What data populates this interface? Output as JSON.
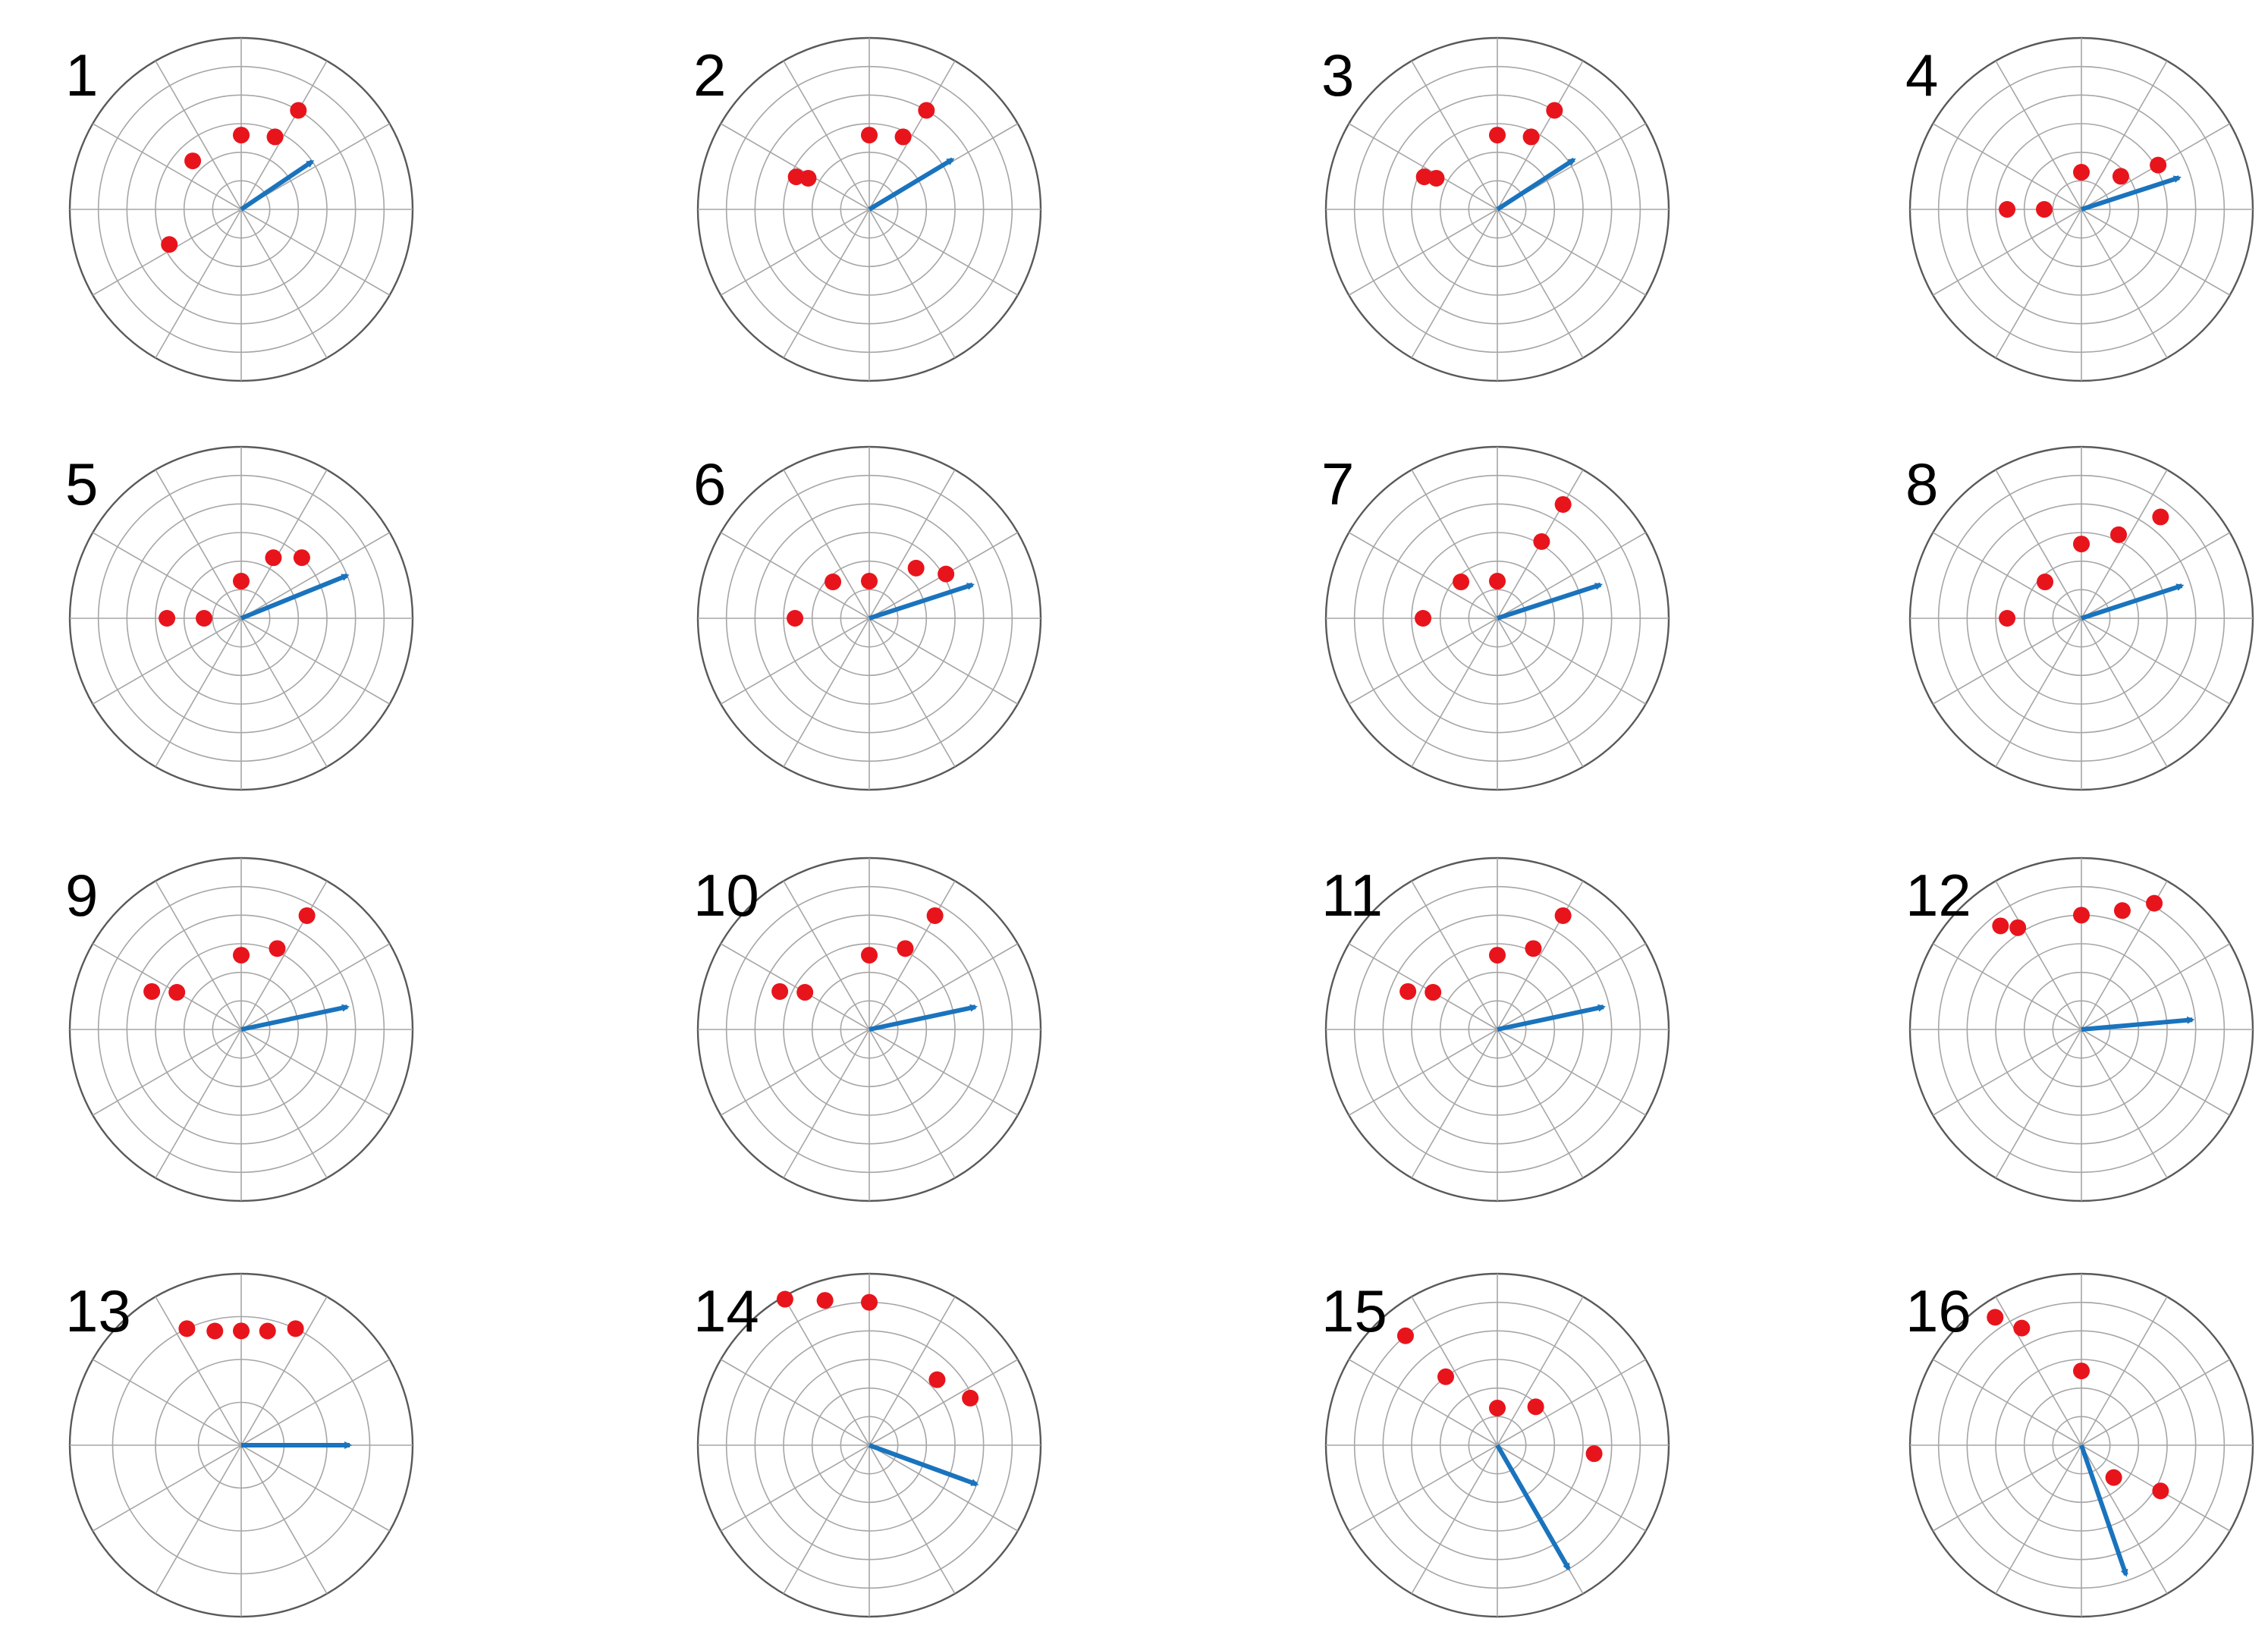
{
  "chart_data": {
    "type": "polar-scatter",
    "layout": {
      "columns": 4,
      "rows": 4
    },
    "grid": true,
    "theta_direction": "counterclockwise",
    "theta_zero": "east",
    "angular_gridline_spacing_deg": 30,
    "colors": {
      "point": "#e8141c",
      "arrow": "#1a73bd",
      "grid": "#a6a6a6",
      "outer_ring": "#595959"
    },
    "panels": [
      {
        "label": "1",
        "rings": 6,
        "points": [
          {
            "r": 4.0,
            "theta": 60
          },
          {
            "r": 2.8,
            "theta": 65
          },
          {
            "r": 2.6,
            "theta": 90
          },
          {
            "r": 2.4,
            "theta": 135
          },
          {
            "r": 2.8,
            "theta": 206
          }
        ],
        "arrow": {
          "r": 3.0,
          "theta": 34
        }
      },
      {
        "label": "2",
        "rings": 6,
        "points": [
          {
            "r": 4.0,
            "theta": 60
          },
          {
            "r": 2.8,
            "theta": 65
          },
          {
            "r": 2.6,
            "theta": 90
          },
          {
            "r": 2.8,
            "theta": 156
          },
          {
            "r": 2.4,
            "theta": 153
          }
        ],
        "arrow": {
          "r": 3.4,
          "theta": 31
        }
      },
      {
        "label": "3",
        "rings": 6,
        "points": [
          {
            "r": 4.0,
            "theta": 60
          },
          {
            "r": 2.8,
            "theta": 65
          },
          {
            "r": 2.6,
            "theta": 90
          },
          {
            "r": 2.8,
            "theta": 156
          },
          {
            "r": 2.4,
            "theta": 153
          }
        ],
        "arrow": {
          "r": 3.2,
          "theta": 33
        }
      },
      {
        "label": "4",
        "rings": 6,
        "points": [
          {
            "r": 3.1,
            "theta": 30
          },
          {
            "r": 1.8,
            "theta": 40
          },
          {
            "r": 1.3,
            "theta": 90
          },
          {
            "r": 1.3,
            "theta": 180
          },
          {
            "r": 2.6,
            "theta": 180
          }
        ],
        "arrow": {
          "r": 3.6,
          "theta": 18
        }
      },
      {
        "label": "5",
        "rings": 6,
        "points": [
          {
            "r": 3.0,
            "theta": 45
          },
          {
            "r": 2.4,
            "theta": 62
          },
          {
            "r": 1.3,
            "theta": 90
          },
          {
            "r": 1.3,
            "theta": 180
          },
          {
            "r": 2.6,
            "theta": 180
          }
        ],
        "arrow": {
          "r": 4.0,
          "theta": 22
        }
      },
      {
        "label": "6",
        "rings": 6,
        "points": [
          {
            "r": 3.1,
            "theta": 30
          },
          {
            "r": 2.4,
            "theta": 47
          },
          {
            "r": 1.3,
            "theta": 90
          },
          {
            "r": 1.8,
            "theta": 135
          },
          {
            "r": 2.6,
            "theta": 180
          }
        ],
        "arrow": {
          "r": 3.8,
          "theta": 18
        }
      },
      {
        "label": "7",
        "rings": 6,
        "points": [
          {
            "r": 4.6,
            "theta": 60
          },
          {
            "r": 3.1,
            "theta": 60
          },
          {
            "r": 1.3,
            "theta": 90
          },
          {
            "r": 1.8,
            "theta": 135
          },
          {
            "r": 2.6,
            "theta": 180
          }
        ],
        "arrow": {
          "r": 3.8,
          "theta": 18
        }
      },
      {
        "label": "8",
        "rings": 6,
        "points": [
          {
            "r": 4.5,
            "theta": 52
          },
          {
            "r": 3.2,
            "theta": 66
          },
          {
            "r": 2.6,
            "theta": 90
          },
          {
            "r": 1.8,
            "theta": 135
          },
          {
            "r": 2.6,
            "theta": 180
          }
        ],
        "arrow": {
          "r": 3.7,
          "theta": 18
        }
      },
      {
        "label": "9",
        "rings": 6,
        "points": [
          {
            "r": 4.6,
            "theta": 60
          },
          {
            "r": 3.1,
            "theta": 66
          },
          {
            "r": 2.6,
            "theta": 90
          },
          {
            "r": 2.6,
            "theta": 150
          },
          {
            "r": 3.4,
            "theta": 157
          }
        ],
        "arrow": {
          "r": 3.8,
          "theta": 12
        }
      },
      {
        "label": "10",
        "rings": 6,
        "points": [
          {
            "r": 4.6,
            "theta": 60
          },
          {
            "r": 3.1,
            "theta": 66
          },
          {
            "r": 2.6,
            "theta": 90
          },
          {
            "r": 2.6,
            "theta": 150
          },
          {
            "r": 3.4,
            "theta": 157
          }
        ],
        "arrow": {
          "r": 3.8,
          "theta": 12
        }
      },
      {
        "label": "11",
        "rings": 6,
        "points": [
          {
            "r": 4.6,
            "theta": 60
          },
          {
            "r": 3.1,
            "theta": 66
          },
          {
            "r": 2.6,
            "theta": 90
          },
          {
            "r": 2.6,
            "theta": 150
          },
          {
            "r": 3.4,
            "theta": 157
          }
        ],
        "arrow": {
          "r": 3.8,
          "theta": 12
        }
      },
      {
        "label": "12",
        "rings": 6,
        "points": [
          {
            "r": 5.1,
            "theta": 60
          },
          {
            "r": 4.4,
            "theta": 71
          },
          {
            "r": 4.0,
            "theta": 90
          },
          {
            "r": 4.2,
            "theta": 122
          },
          {
            "r": 4.6,
            "theta": 128
          }
        ],
        "arrow": {
          "r": 3.9,
          "theta": 5
        }
      },
      {
        "label": "13",
        "rings": 4,
        "points": [
          {
            "r": 4.5,
            "theta": 65
          },
          {
            "r": 4.1,
            "theta": 77
          },
          {
            "r": 4.0,
            "theta": 90
          },
          {
            "r": 4.1,
            "theta": 103
          },
          {
            "r": 4.5,
            "theta": 115
          }
        ],
        "arrow": {
          "r": 3.8,
          "theta": 0
        }
      },
      {
        "label": "14",
        "rings": 6,
        "points": [
          {
            "r": 3.9,
            "theta": 25
          },
          {
            "r": 3.3,
            "theta": 44
          },
          {
            "r": 5.0,
            "theta": 90
          },
          {
            "r": 5.3,
            "theta": 107
          },
          {
            "r": 5.9,
            "theta": 120
          }
        ],
        "arrow": {
          "r": 4.0,
          "theta": -20
        }
      },
      {
        "label": "15",
        "rings": 6,
        "points": [
          {
            "r": 3.4,
            "theta": -5
          },
          {
            "r": 1.9,
            "theta": 45
          },
          {
            "r": 1.3,
            "theta": 90
          },
          {
            "r": 3.0,
            "theta": 127
          },
          {
            "r": 5.0,
            "theta": 130
          }
        ],
        "arrow": {
          "r": 5.0,
          "theta": -60
        }
      },
      {
        "label": "16",
        "rings": 6,
        "points": [
          {
            "r": 3.2,
            "theta": -30
          },
          {
            "r": 1.6,
            "theta": -45
          },
          {
            "r": 2.6,
            "theta": 90
          },
          {
            "r": 4.6,
            "theta": 117
          },
          {
            "r": 5.4,
            "theta": 124
          }
        ],
        "arrow": {
          "r": 4.8,
          "theta": -71
        }
      }
    ]
  }
}
